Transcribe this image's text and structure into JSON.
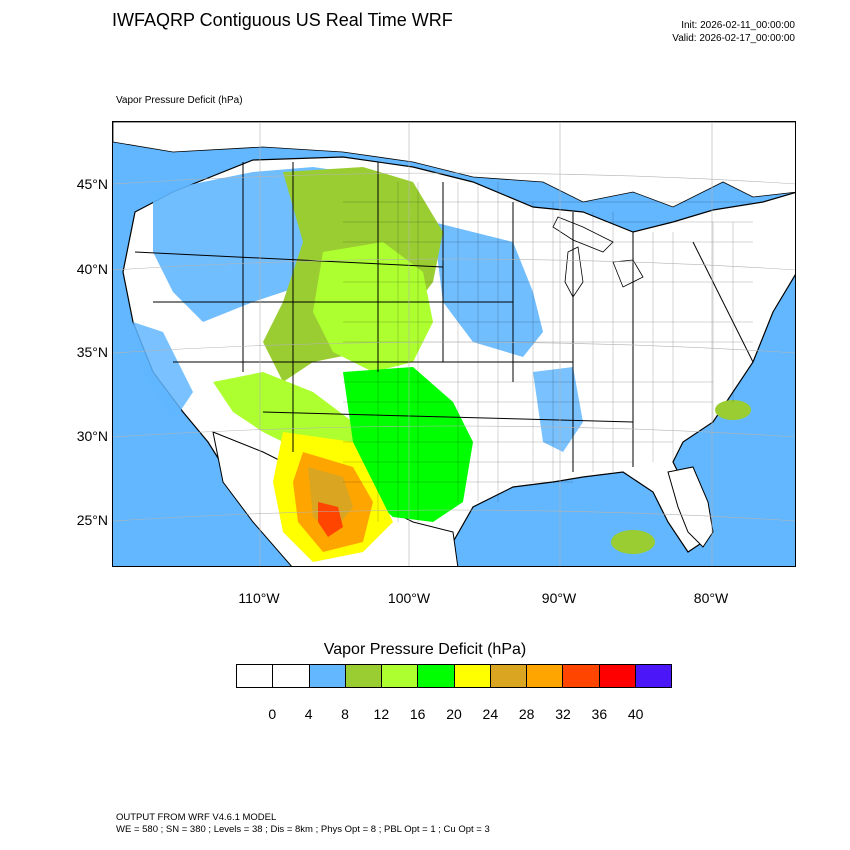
{
  "title": "IWFAQRP Contiguous US Real Time WRF",
  "init_label": "Init: 2026-02-11_00:00:00",
  "valid_label": "Valid: 2026-02-17_00:00:00",
  "field_label": "Vapor Pressure Deficit   (hPa)",
  "map": {
    "latitude_labels": [
      "45°N",
      "40°N",
      "35°N",
      "30°N",
      "25°N"
    ],
    "longitude_labels": [
      "110°W",
      "100°W",
      "90°W",
      "80°W"
    ],
    "background_colors": {
      "ocean": "#62b7ff",
      "land": "#ffffff"
    }
  },
  "colorbar": {
    "title": "Vapor Pressure Deficit  (hPa)",
    "colors": [
      "#ffffff",
      "#ffffff",
      "#62b7ff",
      "#9acd32",
      "#adff2f",
      "#00ff00",
      "#ffff00",
      "#daa520",
      "#ffa500",
      "#ff4500",
      "#ff0000",
      "#4b16f8"
    ],
    "tick_labels": [
      "0",
      "4",
      "8",
      "12",
      "16",
      "20",
      "24",
      "28",
      "32",
      "36",
      "40"
    ]
  },
  "footer": {
    "line1": "OUTPUT FROM WRF V4.6.1 MODEL",
    "line2": "WE = 580 ; SN = 380 ; Levels = 38 ; Dis = 8km ; Phys Opt = 8 ; PBL Opt = 1 ; Cu Opt = 3"
  }
}
